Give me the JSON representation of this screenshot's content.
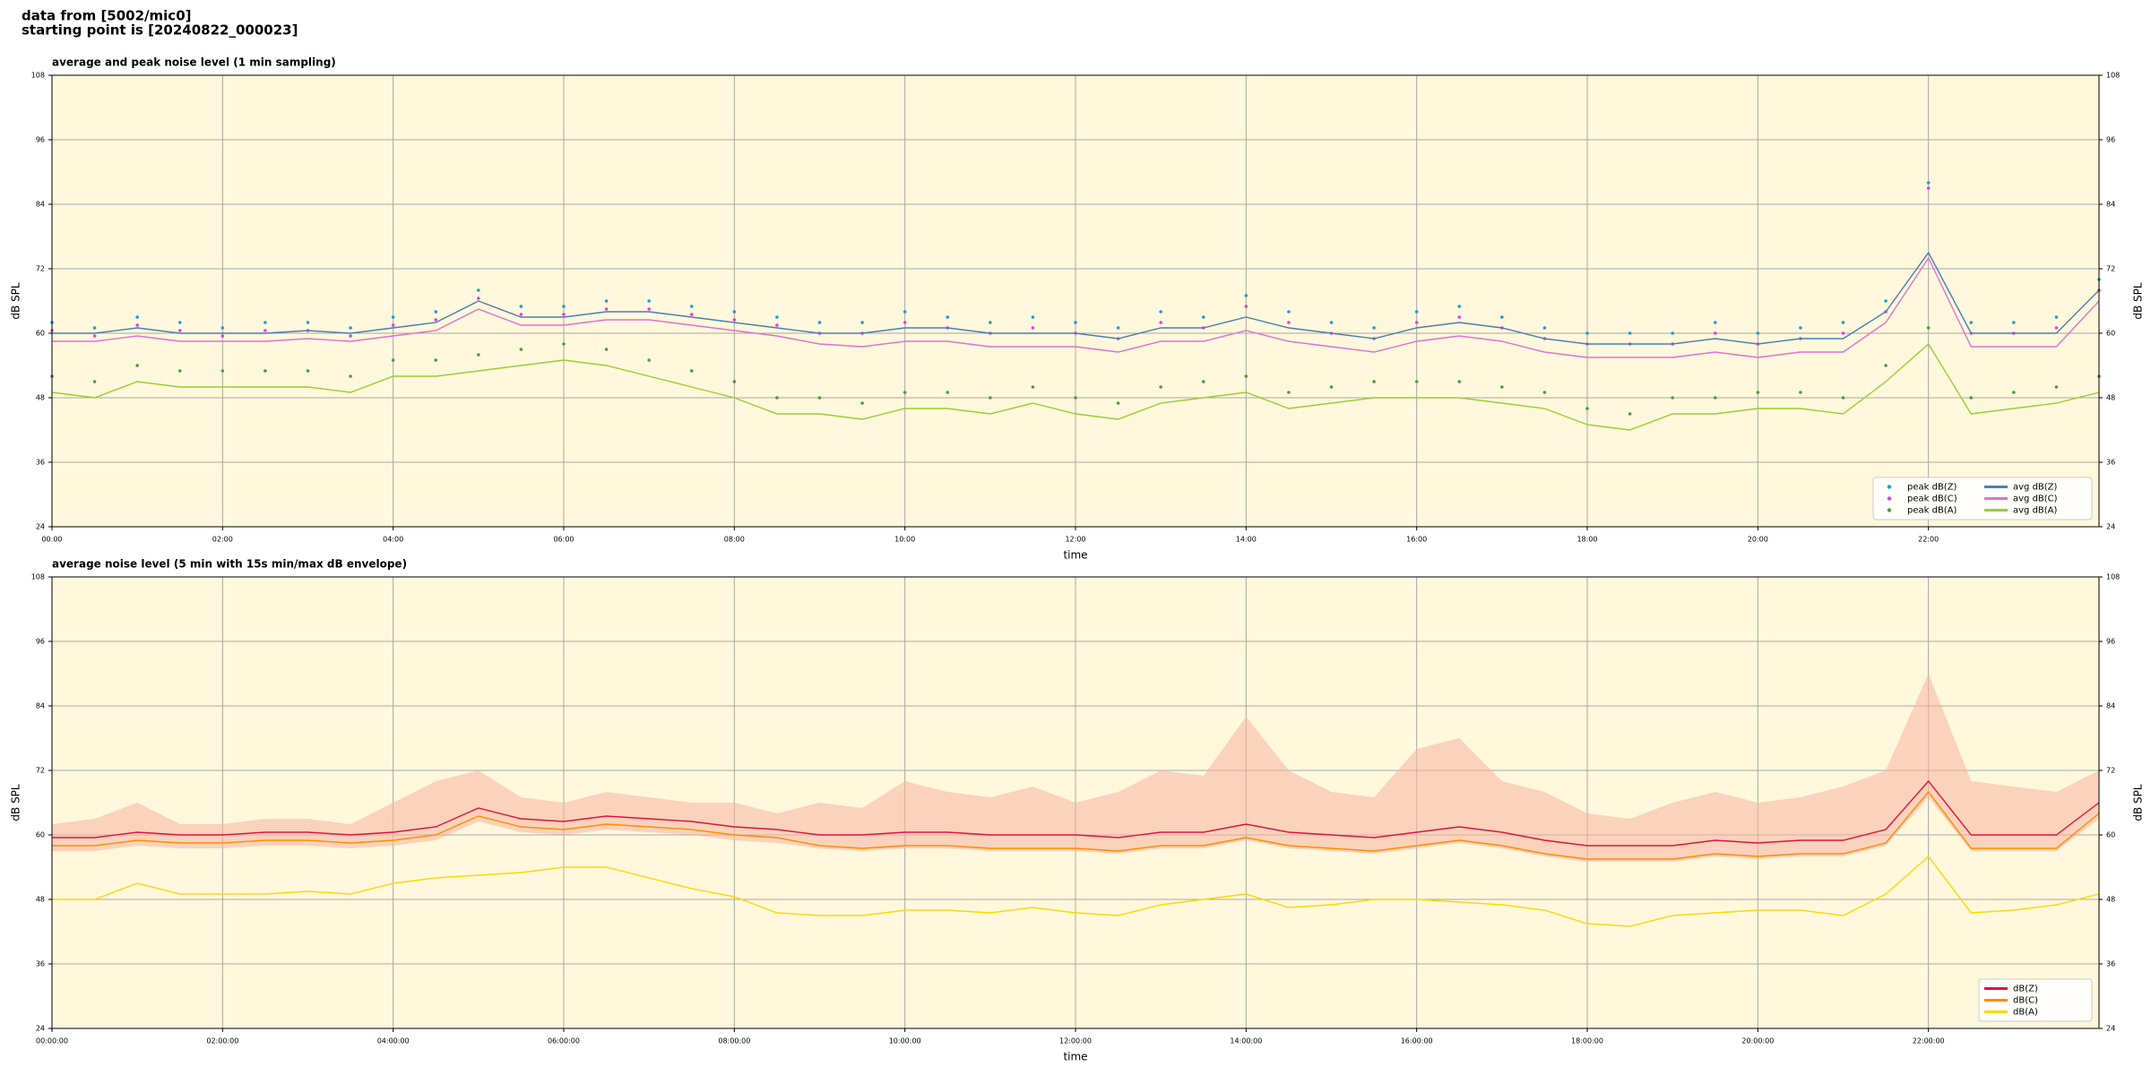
{
  "header": [
    "data from [5002/mic0]",
    "starting point is [20240822_000023]"
  ],
  "chart_data": [
    {
      "type": "line",
      "title": "average and peak noise level (1 min sampling)",
      "xlabel": "time",
      "ylabel": "dB SPL",
      "x": [
        0,
        0.5,
        1,
        1.5,
        2,
        2.5,
        3,
        3.5,
        4,
        4.5,
        5,
        5.5,
        6,
        6.5,
        7,
        7.5,
        8,
        8.5,
        9,
        9.5,
        10,
        10.5,
        11,
        11.5,
        12,
        12.5,
        13,
        13.5,
        14,
        14.5,
        15,
        15.5,
        16,
        16.5,
        17,
        17.5,
        18,
        18.5,
        19,
        19.5,
        20,
        20.5,
        21,
        21.5,
        22,
        22.5,
        23,
        23.5,
        24
      ],
      "xlim": [
        0,
        24
      ],
      "xticks": [
        {
          "value": 0,
          "label": "00:00"
        },
        {
          "value": 2,
          "label": "02:00"
        },
        {
          "value": 4,
          "label": "04:00"
        },
        {
          "value": 6,
          "label": "06:00"
        },
        {
          "value": 8,
          "label": "08:00"
        },
        {
          "value": 10,
          "label": "10:00"
        },
        {
          "value": 12,
          "label": "12:00"
        },
        {
          "value": 14,
          "label": "14:00"
        },
        {
          "value": 16,
          "label": "16:00"
        },
        {
          "value": 18,
          "label": "18:00"
        },
        {
          "value": 20,
          "label": "20:00"
        },
        {
          "value": 22,
          "label": "22:00"
        }
      ],
      "ylim": [
        24,
        108
      ],
      "yticks": [
        24,
        36,
        48,
        60,
        72,
        84,
        96,
        108
      ],
      "grid": true,
      "legend": "lower right",
      "background": "#fff8dc",
      "series": [
        {
          "name": "peak dB(Z)",
          "style": "scatter",
          "color": "#1f9bd6",
          "values": [
            62,
            61,
            63,
            62,
            61,
            62,
            62,
            61,
            63,
            64,
            68,
            65,
            65,
            66,
            66,
            65,
            64,
            63,
            62,
            62,
            64,
            63,
            62,
            63,
            62,
            61,
            64,
            63,
            67,
            64,
            62,
            61,
            64,
            65,
            63,
            61,
            60,
            60,
            60,
            62,
            60,
            61,
            62,
            66,
            88,
            62,
            62,
            63,
            70
          ]
        },
        {
          "name": "peak dB(C)",
          "style": "scatter",
          "color": "#e040e0",
          "values": [
            60.5,
            59.5,
            61.5,
            60.5,
            59.5,
            60.5,
            60.5,
            59.5,
            61.5,
            62.5,
            66.5,
            63.5,
            63.5,
            64.5,
            64.5,
            63.5,
            62.5,
            61.5,
            60,
            60,
            62,
            61,
            60,
            61,
            60,
            59,
            62,
            61,
            65,
            62,
            60,
            59,
            62,
            63,
            61,
            59,
            58,
            58,
            58,
            60,
            58,
            59,
            60,
            64,
            87,
            60,
            60,
            61,
            68
          ]
        },
        {
          "name": "peak dB(A)",
          "style": "scatter",
          "color": "#4a9e3a",
          "values": [
            52,
            51,
            54,
            53,
            53,
            53,
            53,
            52,
            55,
            55,
            56,
            57,
            58,
            57,
            55,
            53,
            51,
            48,
            48,
            47,
            49,
            49,
            48,
            50,
            48,
            47,
            50,
            51,
            52,
            49,
            50,
            51,
            51,
            51,
            50,
            49,
            46,
            45,
            48,
            48,
            49,
            49,
            48,
            54,
            61,
            48,
            49,
            50,
            52
          ]
        },
        {
          "name": "avg dB(Z)",
          "style": "line",
          "color": "#4a7fb0",
          "values": [
            60,
            60,
            61,
            60,
            60,
            60,
            60.5,
            60,
            61,
            62,
            66,
            63,
            63,
            64,
            64,
            63,
            62,
            61,
            60,
            60,
            61,
            61,
            60,
            60,
            60,
            59,
            61,
            61,
            63,
            61,
            60,
            59,
            61,
            62,
            61,
            59,
            58,
            58,
            58,
            59,
            58,
            59,
            59,
            64,
            75,
            60,
            60,
            60,
            68
          ]
        },
        {
          "name": "avg dB(C)",
          "style": "line",
          "color": "#e070d0",
          "values": [
            58.5,
            58.5,
            59.5,
            58.5,
            58.5,
            58.5,
            59,
            58.5,
            59.5,
            60.5,
            64.5,
            61.5,
            61.5,
            62.5,
            62.5,
            61.5,
            60.5,
            59.5,
            58,
            57.5,
            58.5,
            58.5,
            57.5,
            57.5,
            57.5,
            56.5,
            58.5,
            58.5,
            60.5,
            58.5,
            57.5,
            56.5,
            58.5,
            59.5,
            58.5,
            56.5,
            55.5,
            55.5,
            55.5,
            56.5,
            55.5,
            56.5,
            56.5,
            62,
            74,
            57.5,
            57.5,
            57.5,
            66
          ]
        },
        {
          "name": "avg dB(A)",
          "style": "line",
          "color": "#9acd32",
          "values": [
            49,
            48,
            51,
            50,
            50,
            50,
            50,
            49,
            52,
            52,
            53,
            54,
            55,
            54,
            52,
            50,
            48,
            45,
            45,
            44,
            46,
            46,
            45,
            47,
            45,
            44,
            47,
            48,
            49,
            46,
            47,
            48,
            48,
            48,
            47,
            46,
            43,
            42,
            45,
            45,
            46,
            46,
            45,
            51,
            58,
            45,
            46,
            47,
            49
          ]
        }
      ]
    },
    {
      "type": "line",
      "title": "average noise level (5 min with 15s min/max dB envelope)",
      "xlabel": "time",
      "ylabel": "dB SPL",
      "x": [
        0,
        0.5,
        1,
        1.5,
        2,
        2.5,
        3,
        3.5,
        4,
        4.5,
        5,
        5.5,
        6,
        6.5,
        7,
        7.5,
        8,
        8.5,
        9,
        9.5,
        10,
        10.5,
        11,
        11.5,
        12,
        12.5,
        13,
        13.5,
        14,
        14.5,
        15,
        15.5,
        16,
        16.5,
        17,
        17.5,
        18,
        18.5,
        19,
        19.5,
        20,
        20.5,
        21,
        21.5,
        22,
        22.5,
        23,
        23.5,
        24
      ],
      "xlim": [
        0,
        24
      ],
      "xticks": [
        {
          "value": 0,
          "label": "00:00:00"
        },
        {
          "value": 2,
          "label": "02:00:00"
        },
        {
          "value": 4,
          "label": "04:00:00"
        },
        {
          "value": 6,
          "label": "06:00:00"
        },
        {
          "value": 8,
          "label": "08:00:00"
        },
        {
          "value": 10,
          "label": "10:00:00"
        },
        {
          "value": 12,
          "label": "12:00:00"
        },
        {
          "value": 14,
          "label": "14:00:00"
        },
        {
          "value": 16,
          "label": "16:00:00"
        },
        {
          "value": 18,
          "label": "18:00:00"
        },
        {
          "value": 20,
          "label": "20:00:00"
        },
        {
          "value": 22,
          "label": "22:00:00"
        }
      ],
      "ylim": [
        24,
        108
      ],
      "yticks": [
        24,
        36,
        48,
        60,
        72,
        84,
        96,
        108
      ],
      "grid": true,
      "legend": "lower right",
      "background": "#fff8dc",
      "series": [
        {
          "name": "dB(Z)",
          "style": "line",
          "color": "#dc143c",
          "band_color": "#f7b2a0",
          "values": [
            59.5,
            59.5,
            60.5,
            60,
            60,
            60.5,
            60.5,
            60,
            60.5,
            61.5,
            65,
            63,
            62.5,
            63.5,
            63,
            62.5,
            61.5,
            61,
            60,
            60,
            60.5,
            60.5,
            60,
            60,
            60,
            59.5,
            60.5,
            60.5,
            62,
            60.5,
            60,
            59.5,
            60.5,
            61.5,
            60.5,
            59,
            58,
            58,
            58,
            59,
            58.5,
            59,
            59,
            61,
            70,
            60,
            60,
            60,
            66
          ],
          "lower": [
            57,
            57,
            58,
            57.5,
            57.5,
            58,
            58,
            57.5,
            58,
            59,
            62.5,
            60.5,
            60,
            61,
            60.5,
            60,
            59,
            58.5,
            57.5,
            57,
            57.5,
            57.5,
            57,
            57,
            57,
            56.5,
            57.5,
            57.5,
            59,
            57.5,
            57,
            56.5,
            57.5,
            58.5,
            57.5,
            56,
            55,
            55,
            55,
            56,
            55.5,
            56,
            56,
            58,
            67,
            57,
            57,
            57,
            63
          ],
          "upper": [
            62,
            63,
            66,
            62,
            62,
            63,
            63,
            62,
            66,
            70,
            72,
            67,
            66,
            68,
            67,
            66,
            66,
            64,
            66,
            65,
            70,
            68,
            67,
            69,
            66,
            68,
            72,
            71,
            82,
            72,
            68,
            67,
            76,
            78,
            70,
            68,
            64,
            63,
            66,
            68,
            66,
            67,
            69,
            72,
            90,
            70,
            69,
            68,
            72
          ]
        },
        {
          "name": "dB(C)",
          "style": "line",
          "color": "#ff8c00",
          "values": [
            58,
            58,
            59,
            58.5,
            58.5,
            59,
            59,
            58.5,
            59,
            60,
            63.5,
            61.5,
            61,
            62,
            61.5,
            61,
            60,
            59.5,
            58,
            57.5,
            58,
            58,
            57.5,
            57.5,
            57.5,
            57,
            58,
            58,
            59.5,
            58,
            57.5,
            57,
            58,
            59,
            58,
            56.5,
            55.5,
            55.5,
            55.5,
            56.5,
            56,
            56.5,
            56.5,
            58.5,
            68,
            57.5,
            57.5,
            57.5,
            64
          ]
        },
        {
          "name": "dB(A)",
          "style": "line",
          "color": "#ffd700",
          "values": [
            48,
            48,
            51,
            49,
            49,
            49,
            49.5,
            49,
            51,
            52,
            52.5,
            53,
            54,
            54,
            52,
            50,
            48.5,
            45.5,
            45,
            45,
            46,
            46,
            45.5,
            46.5,
            45.5,
            45,
            47,
            48,
            49,
            46.5,
            47,
            48,
            48,
            47.5,
            47,
            46,
            43.5,
            43,
            45,
            45.5,
            46,
            46,
            45,
            49,
            56,
            45.5,
            46,
            47,
            49
          ]
        }
      ]
    }
  ]
}
